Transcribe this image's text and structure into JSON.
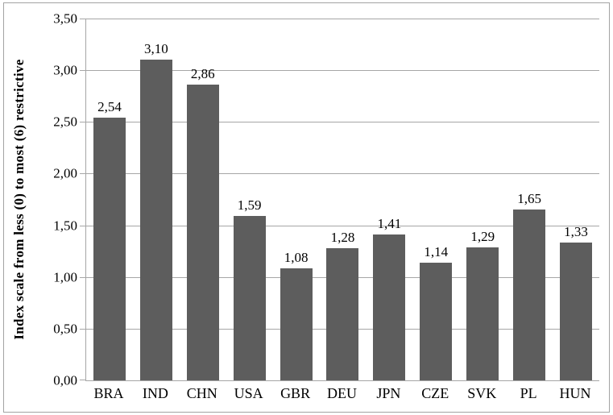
{
  "chart_data": {
    "type": "bar",
    "title": "",
    "xlabel": "",
    "ylabel": "Index scale from less (0) to most (6) restrictive",
    "categories": [
      "BRA",
      "IND",
      "CHN",
      "USA",
      "GBR",
      "DEU",
      "JPN",
      "CZE",
      "SVK",
      "PL",
      "HUN"
    ],
    "values": [
      2.54,
      3.1,
      2.86,
      1.59,
      1.08,
      1.28,
      1.41,
      1.14,
      1.29,
      1.65,
      1.33
    ],
    "value_labels": [
      "2,54",
      "3,10",
      "2,86",
      "1,59",
      "1,08",
      "1,28",
      "1,41",
      "1,14",
      "1,29",
      "1,65",
      "1,33"
    ],
    "ylim": [
      0,
      3.5
    ],
    "y_tick_step": 0.5,
    "y_tick_labels": [
      "0,00",
      "0,50",
      "1,00",
      "1,50",
      "2,00",
      "2,50",
      "3,00",
      "3,50"
    ],
    "grid": true,
    "legend": false,
    "decimal_separator": ",",
    "colors": {
      "bar_fill": "#5d5d5d",
      "gridline": "#a6a6a6",
      "axis_line": "#a6a6a6",
      "frame_border": "#a3a3a3",
      "text": "#000000",
      "background": "#ffffff"
    }
  }
}
